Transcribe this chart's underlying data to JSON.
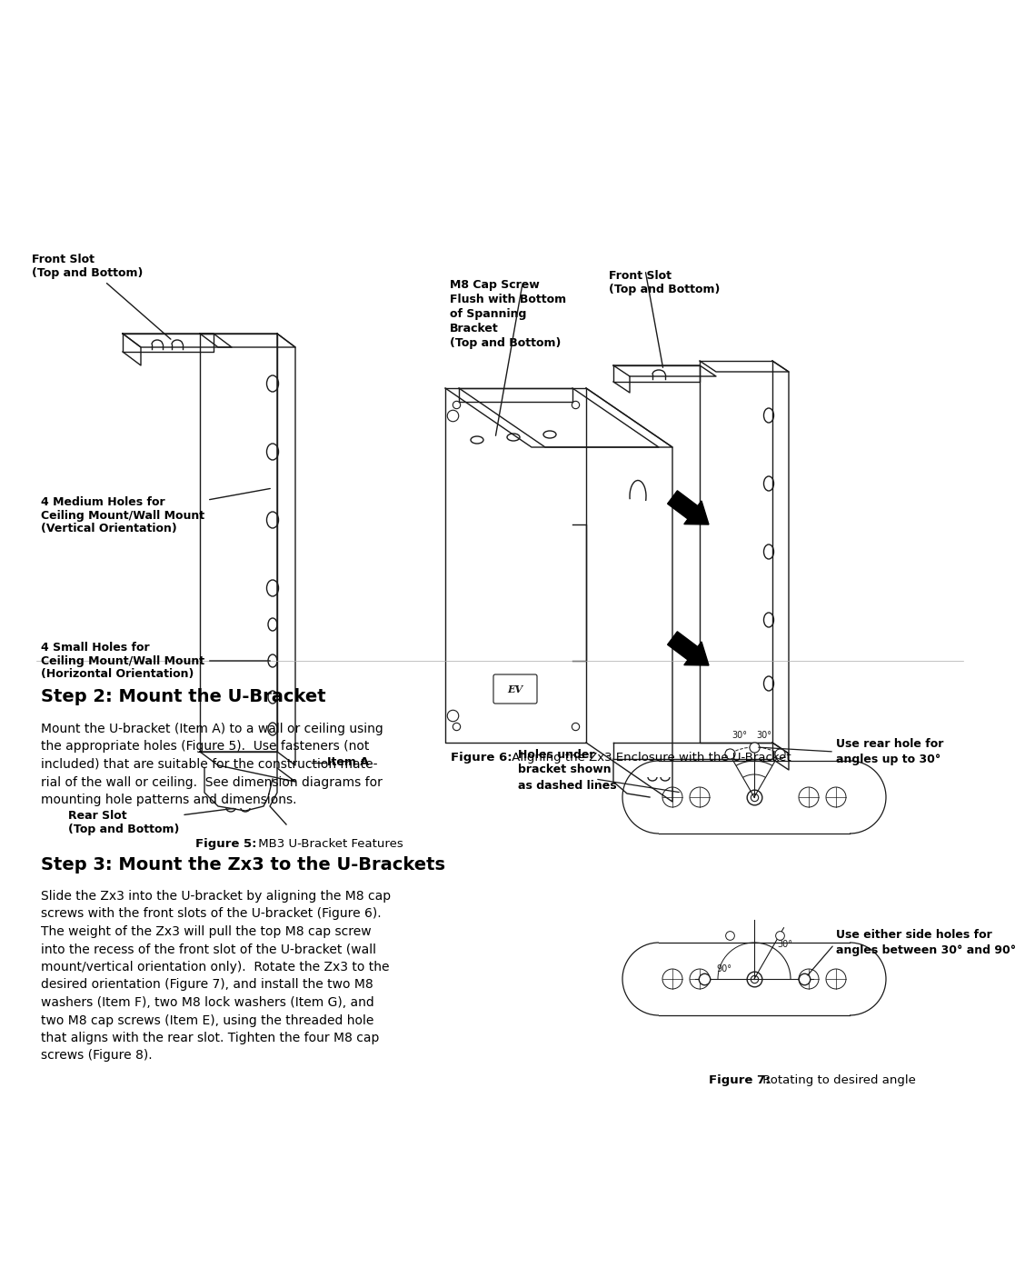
{
  "bg_color": "#ffffff",
  "fig_width": 10.8,
  "fig_height": 13.97,
  "fig5_caption_bold": "Figure 5:",
  "fig5_caption_normal": " MB3 U-Bracket Features",
  "fig6_caption_bold": "Figure 6:",
  "fig6_caption_normal": " Aligning the Zx3 Enclosure with the U-Bracket",
  "fig7_caption_bold": "Figure 7:",
  "fig7_caption_normal": " Rotating to desired angle",
  "step2_title": "Step 2: Mount the U-Bracket",
  "step2_body": "Mount the U-bracket (Item A) to a wall or ceiling using\nthe appropriate holes (Figure 5).  Use fasteners (not\nincluded) that are suitable for the construction mate-\nrial of the wall or ceiling.  See dimension diagrams for\nmounting hole patterns and dimensions.",
  "step3_title": "Step 3: Mount the Zx3 to the U-Brackets",
  "step3_body": "Slide the Zx3 into the U-bracket by aligning the M8 cap\nscrews with the front slots of the U-bracket (Figure 6).\nThe weight of the Zx3 will pull the top M8 cap screw\ninto the recess of the front slot of the U-bracket (wall\nmount/vertical orientation only).  Rotate the Zx3 to the\ndesired orientation (Figure 7), and install the two M8\nwashers (Item F), two M8 lock washers (Item G), and\ntwo M8 cap screws (Item E), using the threaded hole\nthat aligns with the rear slot. Tighten the four M8 cap\nscrews (Figure 8).",
  "lbl_front_slot": "Front Slot\n(Top and Bottom)",
  "lbl_medium_holes": "4 Medium Holes for\nCeiling Mount/Wall Mount\n(Vertical Orientation)",
  "lbl_small_holes": "4 Small Holes for\nCeiling Mount/Wall Mount\n(Horizontal Orientation)",
  "lbl_rear_slot": "Rear Slot\n(Top and Bottom)",
  "lbl_item_a": "Item A",
  "lbl_m8": "M8 Cap Screw\nFlush with Bottom\nof Spanning\nBracket\n(Top and Bottom)",
  "lbl_front_slot_r": "Front Slot\n(Top and Bottom)",
  "lbl_holes_under": "Holes under\nbracket shown\nas dashed lines",
  "lbl_rear_hole": "Use rear hole for\nangles up to 30°",
  "lbl_side_holes": "Use either side holes for\nangles between 30° and 90°",
  "lc": "#1a1a1a",
  "tc": "#000000"
}
